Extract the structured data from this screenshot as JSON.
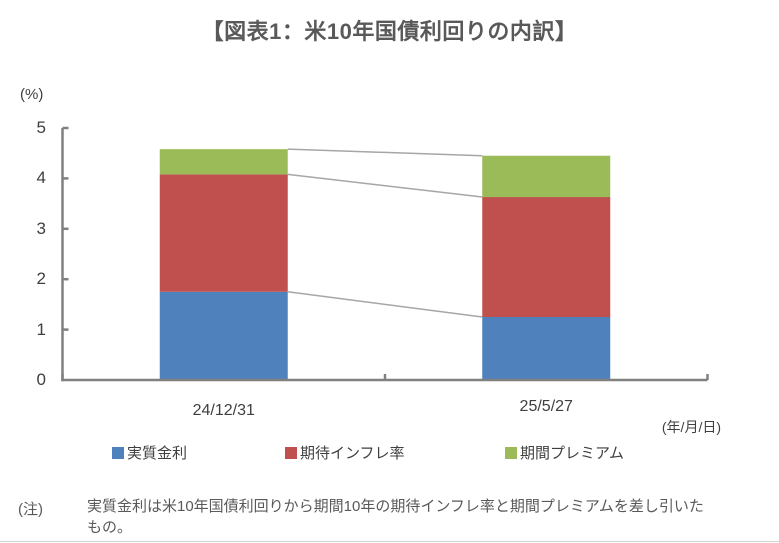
{
  "title": "【図表1：米10年国債利回りの内訳】",
  "y_unit": "(%)",
  "x_unit": "(年/月/日)",
  "note": {
    "label": "(注)",
    "lines": [
      "実質金利は米10年国債利回りから期間10年の期待インフレ率と期間プレミアムを差し引いた",
      "もの。"
    ]
  },
  "colors": {
    "real_rate_blue": "#4F81BD",
    "expected_inflation_red": "#C0504D",
    "term_premium_green": "#9BBB59",
    "axis_gray": "#808080",
    "series_line_gray": "#A6A6A6",
    "title_gray": "#595959"
  },
  "chart_data": {
    "type": "bar",
    "stacked": true,
    "title": "【図表1：米10年国債利回りの内訳】",
    "categories": [
      "24/12/31",
      "25/5/27"
    ],
    "series": [
      {
        "name": "実質金利",
        "color": "#4F81BD",
        "values": [
          1.75,
          1.25
        ]
      },
      {
        "name": "期待インフレ率",
        "color": "#C0504D",
        "values": [
          2.33,
          2.38
        ]
      },
      {
        "name": "期間プレミアム",
        "color": "#9BBB59",
        "values": [
          0.5,
          0.82
        ]
      }
    ],
    "totals": [
      4.58,
      4.45
    ],
    "ylabel": "(%)",
    "xlabel": "(年/月/日)",
    "ylim": [
      0,
      5
    ],
    "yticks": [
      0,
      1,
      2,
      3,
      4,
      5
    ],
    "grid": false,
    "legend_position": "bottom",
    "series_lines": true
  }
}
